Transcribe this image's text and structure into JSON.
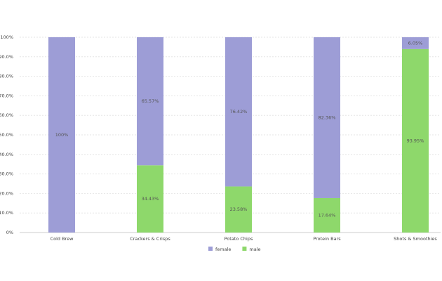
{
  "chart_data": {
    "type": "bar",
    "stacked": true,
    "categories": [
      "Cold Brew",
      "Crackers & Crisps",
      "Potato Chips",
      "Protein Bars",
      "Shots & Smoothies"
    ],
    "series": [
      {
        "name": "female",
        "color": "#9d9dd6",
        "values": [
          100,
          65.57,
          76.42,
          82.36,
          6.05
        ],
        "value_labels": [
          "100%",
          "65.57%",
          "76.42%",
          "82.36%",
          "6.05%"
        ]
      },
      {
        "name": "male",
        "color": "#8ed86b",
        "values": [
          0,
          34.43,
          23.58,
          17.64,
          93.95
        ],
        "value_labels": [
          null,
          "34.43%",
          "23.58%",
          "17.64%",
          "93.95%"
        ]
      }
    ],
    "ylim": [
      0,
      100
    ],
    "yticks": [
      {
        "value": 0,
        "label": "0%"
      },
      {
        "value": 10,
        "label": "10.0%"
      },
      {
        "value": 20,
        "label": "20.0%"
      },
      {
        "value": 30,
        "label": "30.0%"
      },
      {
        "value": 40,
        "label": "40.0%"
      },
      {
        "value": 50,
        "label": "50.0%"
      },
      {
        "value": 60,
        "label": "60.0%"
      },
      {
        "value": 70,
        "label": "70.0%"
      },
      {
        "value": 80,
        "label": "80.0%"
      },
      {
        "value": 90,
        "label": "90.0%"
      },
      {
        "value": 100,
        "label": "100%"
      }
    ],
    "grid": true,
    "legend": "bottom"
  }
}
